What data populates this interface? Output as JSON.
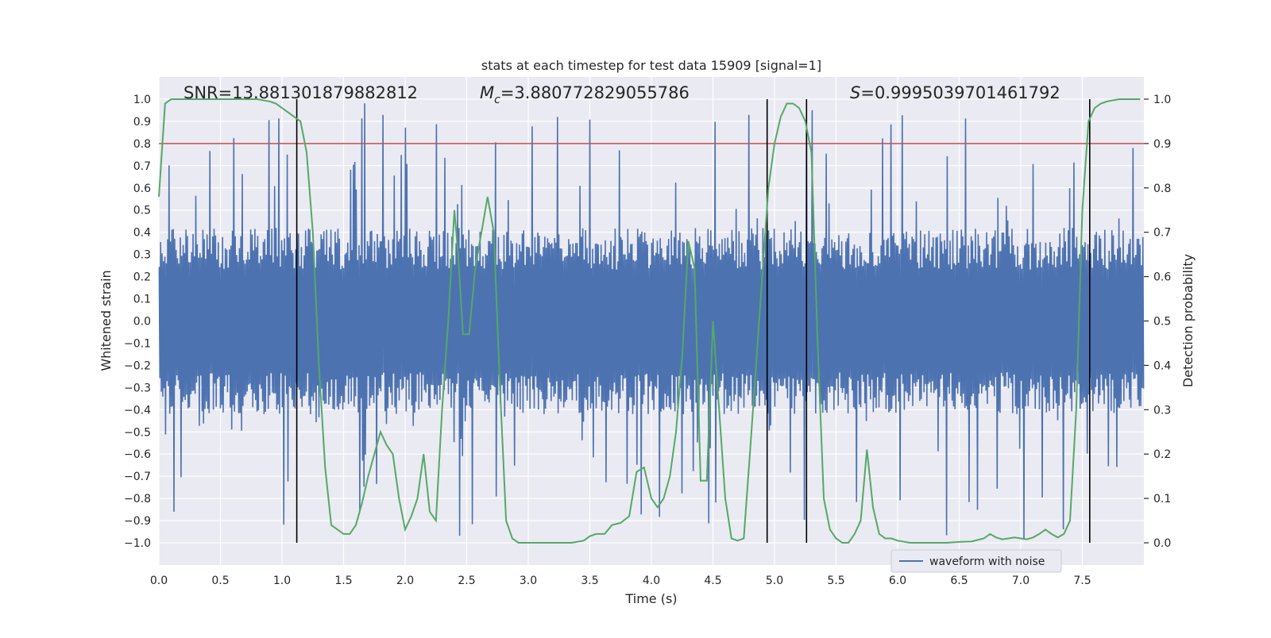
{
  "chart_data": {
    "type": "line",
    "title": "stats at each timestep for test data 15909 [signal=1]",
    "xlabel": "Time (s)",
    "ylabel_left": "Whitened strain",
    "ylabel_right": "Detection probability",
    "xlim": [
      0.0,
      8.0
    ],
    "ylim_left": [
      -1.1,
      1.1
    ],
    "ylim_right": [
      -0.05,
      1.05
    ],
    "grid": true,
    "legend_position": "lower right",
    "x_ticks": [
      0.0,
      0.5,
      1.0,
      1.5,
      2.0,
      2.5,
      3.0,
      3.5,
      4.0,
      4.5,
      5.0,
      5.5,
      6.0,
      6.5,
      7.0,
      7.5
    ],
    "x_tick_labels": [
      "0.0",
      "0.5",
      "1.0",
      "1.5",
      "2.0",
      "2.5",
      "3.0",
      "3.5",
      "4.0",
      "4.5",
      "5.0",
      "5.5",
      "6.0",
      "6.5",
      "7.0",
      "7.5"
    ],
    "y_left_ticks": [
      1.0,
      0.9,
      0.8,
      0.7,
      0.6,
      0.5,
      0.4,
      0.3,
      0.2,
      0.1,
      0.0,
      -0.1,
      -0.2,
      -0.3,
      -0.4,
      -0.5,
      -0.6,
      -0.7,
      -0.8,
      -0.9,
      -1.0
    ],
    "y_left_tick_labels": [
      "1.0",
      "0.9",
      "0.8",
      "0.7",
      "0.6",
      "0.5",
      "0.4",
      "0.3",
      "0.2",
      "0.1",
      "0.0",
      "−0.1",
      "−0.2",
      "−0.3",
      "−0.4",
      "−0.5",
      "−0.6",
      "−0.7",
      "−0.8",
      "−0.9",
      "−1.0"
    ],
    "y_right_ticks": [
      1.0,
      0.9,
      0.8,
      0.7,
      0.6,
      0.5,
      0.4,
      0.3,
      0.2,
      0.1,
      0.0
    ],
    "y_right_tick_labels": [
      "1.0",
      "0.9",
      "0.8",
      "0.7",
      "0.6",
      "0.5",
      "0.4",
      "0.3",
      "0.2",
      "0.1",
      "0.0"
    ],
    "annotations": {
      "snr": "SNR=13.881301879882812",
      "mc_symbol": "M",
      "mc_subscript": "c",
      "mc_value": "=3.880772829055786",
      "s_symbol": "S",
      "s_value": "=0.9995039701461792"
    },
    "legend": [
      {
        "label": "waveform with noise",
        "color": "#4c72b0"
      }
    ],
    "series": [
      {
        "name": "waveform with noise",
        "axis": "left",
        "color": "#4c72b0",
        "kind": "noise",
        "n_samples": 1400,
        "typical_amplitude": 0.42,
        "max_amplitude": 0.99
      },
      {
        "name": "detection probability",
        "axis": "right",
        "color": "#55a868",
        "x": [
          0.0,
          0.05,
          0.1,
          0.2,
          0.3,
          0.4,
          0.5,
          0.6,
          0.7,
          0.8,
          0.9,
          0.95,
          1.0,
          1.05,
          1.1,
          1.15,
          1.2,
          1.25,
          1.3,
          1.35,
          1.4,
          1.45,
          1.5,
          1.55,
          1.6,
          1.65,
          1.7,
          1.75,
          1.8,
          1.85,
          1.9,
          1.95,
          2.0,
          2.05,
          2.1,
          2.15,
          2.2,
          2.25,
          2.3,
          2.35,
          2.4,
          2.43,
          2.47,
          2.52,
          2.57,
          2.62,
          2.67,
          2.72,
          2.77,
          2.82,
          2.87,
          2.92,
          2.97,
          3.05,
          3.2,
          3.35,
          3.45,
          3.5,
          3.55,
          3.62,
          3.68,
          3.75,
          3.82,
          3.88,
          3.94,
          4.0,
          4.05,
          4.1,
          4.15,
          4.2,
          4.25,
          4.3,
          4.35,
          4.4,
          4.45,
          4.5,
          4.55,
          4.6,
          4.65,
          4.7,
          4.75,
          4.8,
          4.85,
          4.9,
          4.95,
          5.0,
          5.05,
          5.1,
          5.15,
          5.2,
          5.25,
          5.3,
          5.35,
          5.4,
          5.45,
          5.5,
          5.55,
          5.6,
          5.65,
          5.7,
          5.75,
          5.8,
          5.85,
          5.9,
          5.95,
          6.0,
          6.1,
          6.2,
          6.3,
          6.4,
          6.5,
          6.6,
          6.7,
          6.75,
          6.8,
          6.85,
          6.9,
          6.95,
          7.0,
          7.05,
          7.1,
          7.15,
          7.2,
          7.25,
          7.3,
          7.35,
          7.4,
          7.45,
          7.5,
          7.55,
          7.6,
          7.65,
          7.7,
          7.8,
          7.9,
          7.97
        ],
        "y": [
          0.78,
          0.99,
          1.0,
          1.0,
          1.0,
          1.0,
          1.0,
          1.0,
          1.0,
          1.0,
          0.995,
          0.99,
          0.98,
          0.97,
          0.96,
          0.95,
          0.88,
          0.7,
          0.4,
          0.17,
          0.04,
          0.03,
          0.02,
          0.02,
          0.04,
          0.09,
          0.15,
          0.2,
          0.25,
          0.22,
          0.2,
          0.1,
          0.03,
          0.06,
          0.1,
          0.2,
          0.07,
          0.05,
          0.3,
          0.5,
          0.75,
          0.65,
          0.47,
          0.47,
          0.62,
          0.7,
          0.78,
          0.7,
          0.35,
          0.05,
          0.01,
          0.0,
          0.0,
          0.0,
          0.0,
          0.0,
          0.005,
          0.015,
          0.02,
          0.02,
          0.04,
          0.045,
          0.06,
          0.16,
          0.17,
          0.1,
          0.08,
          0.1,
          0.15,
          0.25,
          0.42,
          0.68,
          0.62,
          0.14,
          0.14,
          0.5,
          0.3,
          0.1,
          0.01,
          0.005,
          0.01,
          0.2,
          0.4,
          0.6,
          0.8,
          0.9,
          0.96,
          0.99,
          0.99,
          0.98,
          0.95,
          0.88,
          0.45,
          0.1,
          0.03,
          0.01,
          0.0,
          0.0,
          0.02,
          0.05,
          0.21,
          0.08,
          0.02,
          0.01,
          0.01,
          0.005,
          0.0,
          0.0,
          0.0,
          0.0,
          0.002,
          0.003,
          0.01,
          0.02,
          0.012,
          0.008,
          0.01,
          0.012,
          0.01,
          0.008,
          0.012,
          0.02,
          0.03,
          0.02,
          0.012,
          0.02,
          0.05,
          0.3,
          0.75,
          0.95,
          0.98,
          0.99,
          0.995,
          1.0,
          1.0,
          1.0
        ]
      },
      {
        "name": "threshold",
        "axis": "right",
        "color": "#c44e52",
        "y": 0.9
      }
    ],
    "vertical_lines": [
      1.12,
      4.94,
      5.26,
      7.56
    ]
  }
}
